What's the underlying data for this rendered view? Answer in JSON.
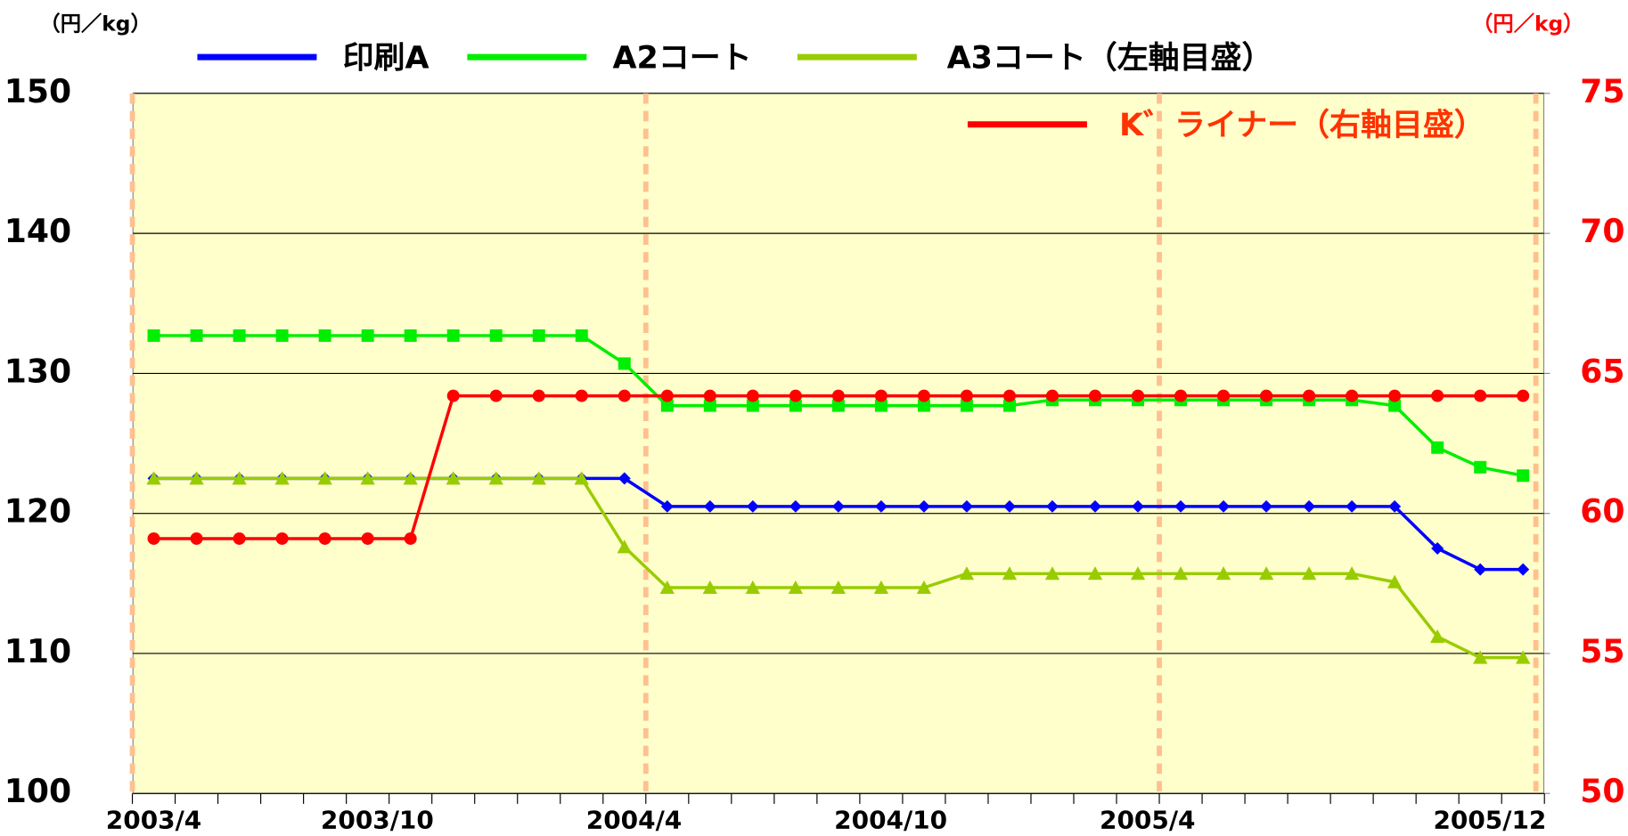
{
  "chart_data": {
    "type": "line",
    "y_unit": "（円／kg）",
    "y2_unit": "（円／kg）",
    "categories": [
      "2003/4",
      null,
      null,
      null,
      null,
      null,
      "2003/10",
      null,
      null,
      null,
      null,
      null,
      "2004/4",
      null,
      null,
      null,
      null,
      null,
      "2004/10",
      null,
      null,
      null,
      null,
      null,
      "2005/4",
      null,
      null,
      null,
      null,
      null,
      null,
      null,
      "2005/12"
    ],
    "series": [
      {
        "name": "印刷A",
        "color": "#0000ff",
        "marker": "diamond",
        "axis": "y",
        "values": [
          122.5,
          122.5,
          122.5,
          122.5,
          122.5,
          122.5,
          122.5,
          122.5,
          122.5,
          122.5,
          122.5,
          122.5,
          120.5,
          120.5,
          120.5,
          120.5,
          120.5,
          120.5,
          120.5,
          120.5,
          120.5,
          120.5,
          120.5,
          120.5,
          120.5,
          120.5,
          120.5,
          120.5,
          120.5,
          120.5,
          117.5,
          116,
          116
        ]
      },
      {
        "name": "A2コート",
        "color": "#00ee00",
        "marker": "square",
        "axis": "y",
        "values": [
          132.7,
          132.7,
          132.7,
          132.7,
          132.7,
          132.7,
          132.7,
          132.7,
          132.7,
          132.7,
          132.7,
          130.7,
          127.7,
          127.7,
          127.7,
          127.7,
          127.7,
          127.7,
          127.7,
          127.7,
          127.7,
          128.1,
          128.1,
          128.1,
          128.1,
          128.1,
          128.1,
          128.1,
          128.1,
          127.7,
          124.7,
          123.3,
          122.7
        ]
      },
      {
        "name": "A3コート（左軸目盛）",
        "color": "#99cc00",
        "marker": "triangle",
        "axis": "y",
        "values": [
          122.5,
          122.5,
          122.5,
          122.5,
          122.5,
          122.5,
          122.5,
          122.5,
          122.5,
          122.5,
          122.5,
          117.6,
          114.7,
          114.7,
          114.7,
          114.7,
          114.7,
          114.7,
          114.7,
          115.7,
          115.7,
          115.7,
          115.7,
          115.7,
          115.7,
          115.7,
          115.7,
          115.7,
          115.7,
          115.1,
          111.2,
          109.7,
          109.7
        ]
      },
      {
        "name": "K゛ライナー（右軸目盛）",
        "color": "#ff0000",
        "marker": "circle",
        "axis": "y2",
        "values": [
          59.1,
          59.1,
          59.1,
          59.1,
          59.1,
          59.1,
          59.1,
          64.2,
          64.2,
          64.2,
          64.2,
          64.2,
          64.2,
          64.2,
          64.2,
          64.2,
          64.2,
          64.2,
          64.2,
          64.2,
          64.2,
          64.2,
          64.2,
          64.2,
          64.2,
          64.2,
          64.2,
          64.2,
          64.2,
          64.2,
          64.2,
          64.2,
          64.2
        ]
      }
    ],
    "ylim": [
      100,
      150
    ],
    "yticks": [
      100,
      110,
      120,
      130,
      140,
      150
    ],
    "y2lim": [
      50,
      75
    ],
    "y2ticks": [
      50,
      55,
      60,
      65,
      70,
      75
    ],
    "grid": true
  }
}
